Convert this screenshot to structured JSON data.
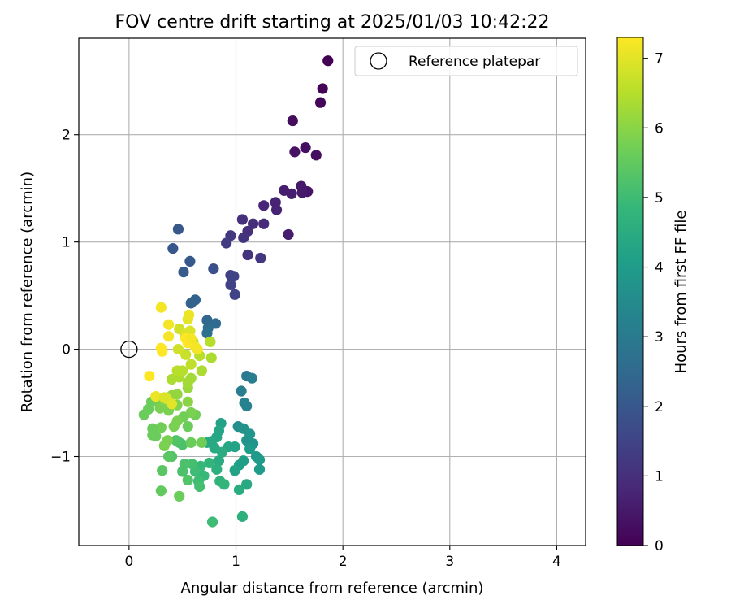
{
  "chart_data": {
    "type": "scatter",
    "title": "FOV centre drift starting at 2025/01/03 10:42:22",
    "xlabel": "Angular distance from reference (arcmin)",
    "ylabel": "Rotation from reference (arcmin)",
    "xlim": [
      -0.47,
      4.27
    ],
    "ylim": [
      -1.83,
      2.9
    ],
    "xticks": [
      0,
      1,
      2,
      3,
      4
    ],
    "xtick_labels": [
      "0",
      "1",
      "2",
      "3",
      "4"
    ],
    "yticks": [
      -1,
      0,
      1,
      2
    ],
    "ytick_labels": [
      "−1",
      "0",
      "1",
      "2"
    ],
    "grid": true,
    "legend": {
      "placement": "top-right",
      "entries": [
        "Reference platepar"
      ]
    },
    "reference": {
      "name": "Reference platepar",
      "x": 0,
      "y": 0,
      "marker": "open-circle"
    },
    "colorbar": {
      "label": "Hours from first FF file",
      "range": [
        0,
        7.3
      ],
      "ticks": [
        0,
        1,
        2,
        3,
        4,
        5,
        6,
        7
      ],
      "tick_labels": [
        "0",
        "1",
        "2",
        "3",
        "4",
        "5",
        "6",
        "7"
      ],
      "colormap": "viridis",
      "colors": [
        "#440154",
        "#482878",
        "#3e4989",
        "#31688e",
        "#26828e",
        "#1f9e89",
        "#35b779",
        "#6ece58",
        "#b5de2b",
        "#fde725"
      ]
    },
    "series": [
      {
        "points": [
          [
            1.86,
            2.69,
            0.0
          ],
          [
            1.81,
            2.43,
            0.05
          ],
          [
            1.79,
            2.3,
            0.1
          ],
          [
            1.53,
            2.13,
            0.2
          ],
          [
            1.55,
            1.84,
            0.35
          ],
          [
            1.65,
            1.88,
            0.3
          ],
          [
            1.75,
            1.81,
            0.3
          ],
          [
            1.67,
            1.47,
            0.4
          ],
          [
            1.61,
            1.52,
            0.5
          ],
          [
            1.62,
            1.46,
            0.5
          ],
          [
            1.52,
            1.45,
            0.6
          ],
          [
            1.45,
            1.48,
            0.6
          ],
          [
            1.37,
            1.37,
            0.7
          ],
          [
            1.38,
            1.3,
            0.7
          ],
          [
            1.26,
            1.34,
            0.8
          ],
          [
            1.49,
            1.07,
            0.6
          ],
          [
            1.26,
            1.17,
            0.9
          ],
          [
            1.16,
            1.17,
            1.0
          ],
          [
            1.11,
            1.1,
            1.0
          ],
          [
            1.06,
            1.21,
            1.0
          ],
          [
            1.07,
            1.04,
            1.1
          ],
          [
            0.95,
            1.06,
            1.2
          ],
          [
            0.91,
            0.99,
            1.3
          ],
          [
            1.11,
            0.88,
            1.1
          ],
          [
            1.23,
            0.85,
            1.2
          ],
          [
            0.95,
            0.69,
            1.4
          ],
          [
            0.98,
            0.68,
            1.5
          ],
          [
            0.95,
            0.6,
            1.5
          ],
          [
            0.99,
            0.51,
            1.5
          ],
          [
            0.79,
            0.75,
            1.8
          ],
          [
            0.46,
            1.12,
            2.0
          ],
          [
            0.41,
            0.94,
            2.0
          ],
          [
            0.57,
            0.82,
            2.0
          ],
          [
            0.51,
            0.72,
            2.1
          ],
          [
            0.62,
            0.46,
            2.3
          ],
          [
            0.58,
            0.43,
            2.3
          ],
          [
            0.73,
            0.27,
            2.4
          ],
          [
            0.81,
            0.24,
            2.5
          ],
          [
            0.74,
            0.2,
            2.6
          ],
          [
            0.73,
            0.15,
            2.7
          ],
          [
            1.1,
            -0.25,
            3.0
          ],
          [
            1.15,
            -0.27,
            3.1
          ],
          [
            1.05,
            -0.39,
            3.1
          ],
          [
            1.08,
            -0.5,
            3.2
          ],
          [
            1.1,
            -0.53,
            3.2
          ],
          [
            1.02,
            -0.72,
            3.6
          ],
          [
            1.07,
            -0.74,
            3.7
          ],
          [
            1.13,
            -0.79,
            3.8
          ],
          [
            1.1,
            -0.85,
            3.8
          ],
          [
            1.16,
            -0.88,
            3.8
          ],
          [
            1.13,
            -0.93,
            4.0
          ],
          [
            1.19,
            -1.0,
            3.9
          ],
          [
            1.22,
            -1.03,
            4.0
          ],
          [
            1.22,
            -1.12,
            4.0
          ],
          [
            1.07,
            -1.04,
            4.1
          ],
          [
            1.03,
            -1.08,
            4.1
          ],
          [
            0.99,
            -1.13,
            4.2
          ],
          [
            0.86,
            -0.69,
            4.2
          ],
          [
            0.84,
            -0.76,
            4.3
          ],
          [
            0.82,
            -0.82,
            4.3
          ],
          [
            0.77,
            -0.86,
            4.4
          ],
          [
            0.73,
            -0.87,
            4.4
          ],
          [
            0.8,
            -0.92,
            4.4
          ],
          [
            0.93,
            -0.91,
            4.3
          ],
          [
            0.99,
            -0.91,
            4.2
          ],
          [
            0.87,
            -0.96,
            4.5
          ],
          [
            0.84,
            -1.04,
            4.5
          ],
          [
            1.1,
            -1.26,
            4.4
          ],
          [
            1.03,
            -1.31,
            4.5
          ],
          [
            1.06,
            -1.56,
            4.6
          ],
          [
            0.82,
            -1.12,
            4.6
          ],
          [
            0.85,
            -1.23,
            4.7
          ],
          [
            0.89,
            -1.26,
            4.8
          ],
          [
            0.75,
            -1.06,
            4.8
          ],
          [
            0.67,
            -1.09,
            4.9
          ],
          [
            0.62,
            -1.14,
            5.0
          ],
          [
            0.7,
            -1.18,
            4.9
          ],
          [
            0.65,
            -1.23,
            5.0
          ],
          [
            0.66,
            -1.28,
            5.1
          ],
          [
            0.59,
            -1.07,
            5.1
          ],
          [
            0.52,
            -1.07,
            5.2
          ],
          [
            0.5,
            -1.14,
            5.2
          ],
          [
            0.55,
            -1.22,
            5.3
          ],
          [
            0.78,
            -1.61,
            5.0
          ],
          [
            0.47,
            -0.87,
            5.2
          ],
          [
            0.5,
            -0.89,
            5.2
          ],
          [
            0.44,
            -0.85,
            5.3
          ],
          [
            0.4,
            -1.0,
            5.3
          ],
          [
            0.37,
            -1.0,
            5.4
          ],
          [
            0.31,
            -1.13,
            5.4
          ],
          [
            0.3,
            -1.32,
            5.5
          ],
          [
            0.47,
            -1.37,
            5.6
          ],
          [
            0.68,
            -0.87,
            5.7
          ],
          [
            0.58,
            -0.87,
            5.6
          ],
          [
            0.55,
            -0.72,
            5.6
          ],
          [
            0.62,
            -0.61,
            5.7
          ],
          [
            0.58,
            -0.59,
            5.8
          ],
          [
            0.51,
            -0.63,
            5.7
          ],
          [
            0.45,
            -0.67,
            5.8
          ],
          [
            0.42,
            -0.72,
            5.8
          ],
          [
            0.3,
            -0.73,
            5.7
          ],
          [
            0.22,
            -0.74,
            5.6
          ],
          [
            0.25,
            -0.81,
            5.6
          ],
          [
            0.22,
            -0.8,
            5.6
          ],
          [
            0.36,
            -0.85,
            5.8
          ],
          [
            0.33,
            -0.9,
            5.8
          ],
          [
            0.14,
            -0.61,
            5.6
          ],
          [
            0.18,
            -0.56,
            5.6
          ],
          [
            0.21,
            -0.49,
            5.6
          ],
          [
            0.27,
            -0.49,
            5.7
          ],
          [
            0.29,
            -0.55,
            5.8
          ],
          [
            0.33,
            -0.48,
            5.9
          ],
          [
            0.37,
            -0.57,
            5.8
          ],
          [
            0.45,
            -0.52,
            5.9
          ],
          [
            0.55,
            -0.49,
            6.0
          ],
          [
            0.45,
            -0.42,
            6.1
          ],
          [
            0.4,
            -0.43,
            6.1
          ],
          [
            0.55,
            -0.36,
            6.2
          ],
          [
            0.55,
            -0.31,
            6.3
          ],
          [
            0.58,
            -0.27,
            6.3
          ],
          [
            0.47,
            -0.26,
            6.4
          ],
          [
            0.4,
            -0.28,
            6.4
          ],
          [
            0.45,
            -0.2,
            6.5
          ],
          [
            0.5,
            -0.2,
            6.5
          ],
          [
            0.68,
            -0.2,
            6.4
          ],
          [
            0.58,
            -0.14,
            6.6
          ],
          [
            0.53,
            -0.05,
            6.7
          ],
          [
            0.46,
            0.0,
            6.8
          ],
          [
            0.6,
            0.07,
            6.6
          ],
          [
            0.66,
            -0.06,
            6.5
          ],
          [
            0.77,
            -0.08,
            6.4
          ],
          [
            0.76,
            0.07,
            6.5
          ],
          [
            0.47,
            0.19,
            6.8
          ],
          [
            0.52,
            0.14,
            6.9
          ],
          [
            0.57,
            0.17,
            6.9
          ],
          [
            0.55,
            0.28,
            7.0
          ],
          [
            0.56,
            0.32,
            7.1
          ],
          [
            0.3,
            0.39,
            7.2
          ],
          [
            0.37,
            0.23,
            7.2
          ],
          [
            0.37,
            0.12,
            7.2
          ],
          [
            0.53,
            0.1,
            7.3
          ],
          [
            0.55,
            0.06,
            7.3
          ],
          [
            0.58,
            0.1,
            7.2
          ],
          [
            0.3,
            0.01,
            7.3
          ],
          [
            0.31,
            -0.02,
            7.3
          ],
          [
            0.64,
            0.0,
            7.2
          ],
          [
            0.62,
            0.02,
            7.2
          ],
          [
            0.19,
            -0.25,
            7.3
          ],
          [
            0.25,
            -0.44,
            7.1
          ],
          [
            0.35,
            -0.46,
            7.0
          ],
          [
            0.4,
            -0.51,
            7.0
          ],
          [
            0.33,
            -0.45,
            6.9
          ]
        ]
      }
    ]
  }
}
